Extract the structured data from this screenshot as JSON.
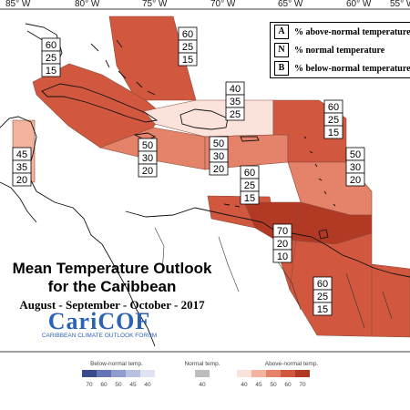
{
  "title": {
    "line1": "Mean Temperature Outlook",
    "line2": "for the Caribbean",
    "period": "August - September - October - 2017"
  },
  "logo": {
    "name": "CariCOF",
    "tagline": "CARIBBEAN CLIMATE OUTLOOK FORUM"
  },
  "longitude_labels": [
    "85° W",
    "80° W",
    "75° W",
    "70° W",
    "65° W",
    "60° W",
    "55° W"
  ],
  "legend": {
    "items": [
      {
        "key": "A",
        "text": "% above-normal temperature"
      },
      {
        "key": "N",
        "text": "% normal temperature"
      },
      {
        "key": "B",
        "text": "% below-normal temperature"
      }
    ]
  },
  "scale": {
    "below_label": "Below-normal temp.",
    "normal_label": "Normal temp.",
    "above_label": "Above-normal temp.",
    "below_ticks": [
      "70",
      "60",
      "50",
      "45",
      "40"
    ],
    "normal_ticks": [
      "40"
    ],
    "above_ticks": [
      "40",
      "45",
      "50",
      "60",
      "70"
    ],
    "below_colors": [
      "#3a4a8c",
      "#6574b4",
      "#8f9bcc",
      "#b9c0e0",
      "#e0e3f2"
    ],
    "normal_colors": [
      "#bdbdbd"
    ],
    "above_colors": [
      "#fbe3dc",
      "#f3b39f",
      "#e5826a",
      "#d1583f",
      "#b23a24"
    ]
  },
  "regions": [
    {
      "name": "Bahamas",
      "probs": [
        "60",
        "25",
        "15"
      ],
      "color": "#d1583f"
    },
    {
      "name": "Cuba",
      "probs": [
        "60",
        "25",
        "15"
      ],
      "color": "#d1583f"
    },
    {
      "name": "Belize",
      "probs": [
        "45",
        "35",
        "20"
      ],
      "color": "#f3b39f"
    },
    {
      "name": "Hispaniola",
      "probs": [
        "40",
        "35",
        "25"
      ],
      "color": "#fbe3dc"
    },
    {
      "name": "Jamaica",
      "probs": [
        "50",
        "30",
        "20"
      ],
      "color": "#e5826a"
    },
    {
      "name": "Puerto Rico",
      "probs": [
        "50",
        "30",
        "20"
      ],
      "color": "#e5826a"
    },
    {
      "name": "Leeward Islands",
      "probs": [
        "60",
        "25",
        "15"
      ],
      "color": "#d1583f"
    },
    {
      "name": "Windward Islands",
      "probs": [
        "50",
        "30",
        "20"
      ],
      "color": "#e5826a"
    },
    {
      "name": "ABC Islands",
      "probs": [
        "60",
        "25",
        "15"
      ],
      "color": "#d1583f"
    },
    {
      "name": "Trinidad",
      "probs": [
        "70",
        "20",
        "10"
      ],
      "color": "#b23a24"
    },
    {
      "name": "Guianas",
      "probs": [
        "60",
        "25",
        "15"
      ],
      "color": "#d1583f"
    }
  ]
}
